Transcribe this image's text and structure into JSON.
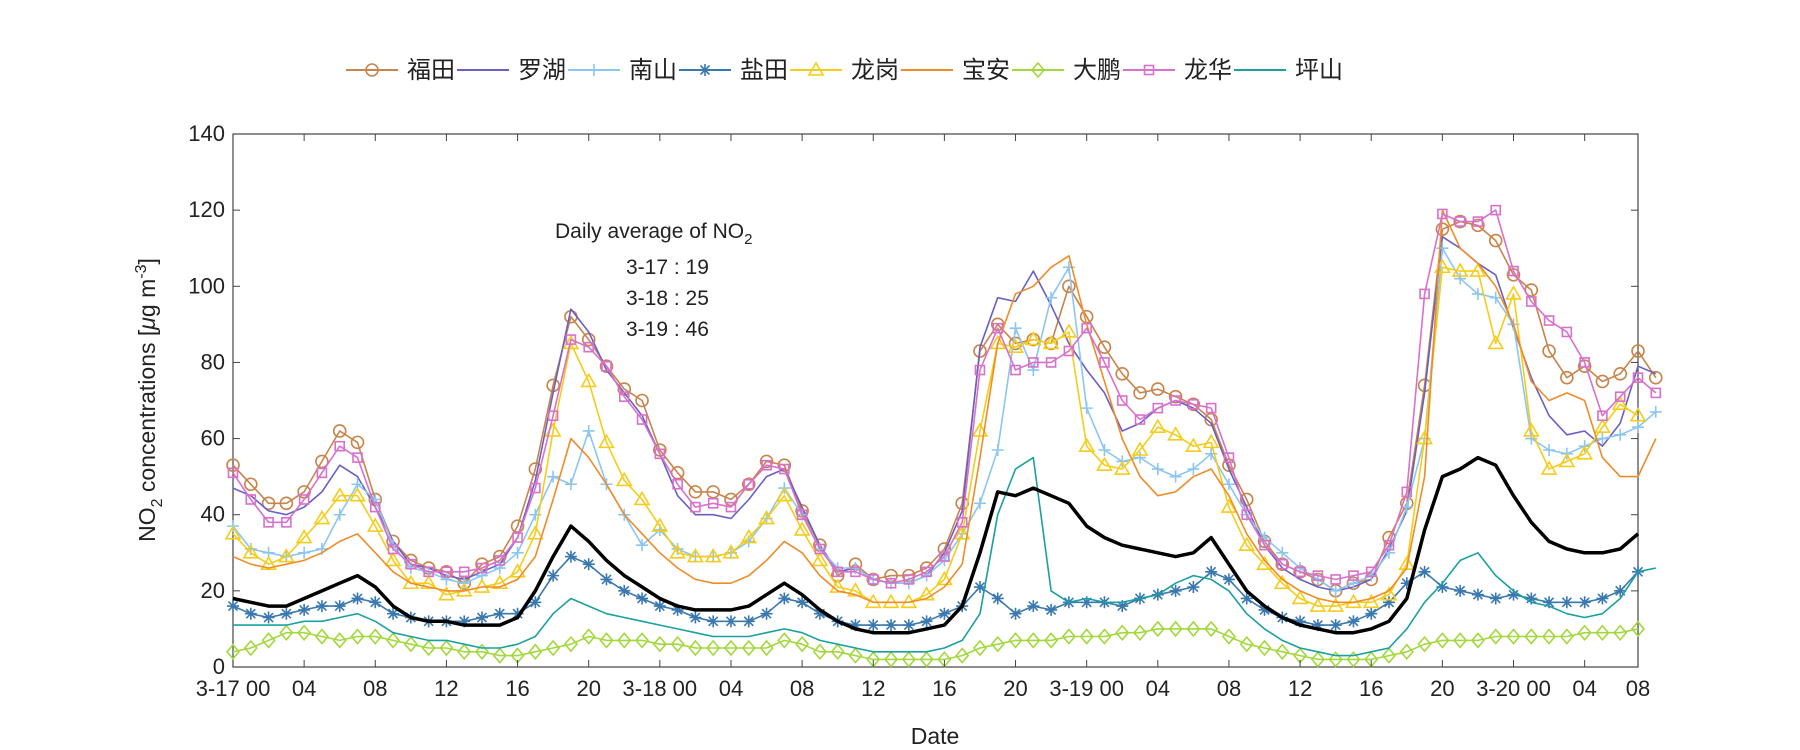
{
  "chart_data": {
    "type": "line",
    "xlabel": "Date",
    "ylabel": "NO",
    "ylabel_sub": "2",
    "ylabel_rest": " concentrations [",
    "ylabel_mu": "μ",
    "ylabel_unit": "g m",
    "ylabel_sup": "-3",
    "ylabel_end": "]",
    "ylim": [
      0,
      140
    ],
    "yticks": [
      0,
      20,
      40,
      60,
      80,
      100,
      120,
      140
    ],
    "xlim": [
      0,
      79
    ],
    "xticks": [
      {
        "x": 0,
        "label": "3-17 00"
      },
      {
        "x": 4,
        "label": "04"
      },
      {
        "x": 8,
        "label": "08"
      },
      {
        "x": 12,
        "label": "12"
      },
      {
        "x": 16,
        "label": "16"
      },
      {
        "x": 20,
        "label": "20"
      },
      {
        "x": 24,
        "label": "3-18 00"
      },
      {
        "x": 28,
        "label": "04"
      },
      {
        "x": 32,
        "label": "08"
      },
      {
        "x": 36,
        "label": "12"
      },
      {
        "x": 40,
        "label": "16"
      },
      {
        "x": 44,
        "label": "20"
      },
      {
        "x": 48,
        "label": "3-19 00"
      },
      {
        "x": 52,
        "label": "04"
      },
      {
        "x": 56,
        "label": "08"
      },
      {
        "x": 60,
        "label": "12"
      },
      {
        "x": 64,
        "label": "16"
      },
      {
        "x": 68,
        "label": "20"
      },
      {
        "x": 72,
        "label": "3-20 00"
      },
      {
        "x": 76,
        "label": "04"
      },
      {
        "x": 79,
        "label": "08"
      }
    ],
    "grid": false,
    "legend_position": "top",
    "annotation": {
      "title_main": "Daily average of NO",
      "title_sub": "2",
      "lines": [
        "3-17 : 19",
        "3-18 : 25",
        "3-19 : 46"
      ]
    },
    "series": [
      {
        "name": "福田",
        "color": "#c8844a",
        "marker": "circle",
        "values": [
          53,
          48,
          43,
          43,
          46,
          54,
          62,
          59,
          44,
          33,
          28,
          26,
          25,
          22,
          27,
          29,
          37,
          52,
          74,
          92,
          86,
          79,
          73,
          70,
          57,
          51,
          46,
          46,
          44,
          48,
          54,
          53,
          41,
          32,
          24,
          27,
          23,
          24,
          24,
          26,
          31,
          43,
          83,
          90,
          85,
          86,
          85,
          100,
          92,
          84,
          77,
          72,
          73,
          71,
          69,
          65,
          53,
          44,
          33,
          27,
          25,
          23,
          20,
          22,
          23,
          34,
          43,
          74,
          115,
          117,
          116,
          112,
          103,
          99,
          83,
          76,
          79,
          75,
          77,
          83,
          76
        ]
      },
      {
        "name": "罗湖",
        "color": "#6a5fc4",
        "marker": "none",
        "values": [
          47,
          45,
          41,
          40,
          42,
          46,
          53,
          50,
          42,
          33,
          27,
          26,
          24,
          23,
          25,
          27,
          34,
          49,
          72,
          94,
          88,
          78,
          72,
          66,
          56,
          45,
          40,
          40,
          39,
          44,
          50,
          52,
          42,
          32,
          25,
          26,
          23,
          22,
          22,
          24,
          30,
          41,
          84,
          97,
          96,
          104,
          95,
          85,
          78,
          72,
          62,
          64,
          68,
          70,
          68,
          64,
          52,
          42,
          32,
          26,
          23,
          21,
          20,
          21,
          23,
          31,
          41,
          72,
          113,
          110,
          106,
          103,
          89,
          76,
          66,
          61,
          62,
          58,
          64,
          79,
          77
        ]
      },
      {
        "name": "南山",
        "color": "#8cc6f0",
        "marker": "plus",
        "values": [
          37,
          31,
          30,
          29,
          30,
          31,
          40,
          48,
          44,
          32,
          26,
          25,
          23,
          22,
          24,
          26,
          30,
          40,
          50,
          48,
          62,
          48,
          40,
          32,
          36,
          31,
          29,
          29,
          30,
          33,
          39,
          47,
          40,
          31,
          26,
          26,
          23,
          22,
          22,
          24,
          28,
          35,
          43,
          57,
          89,
          78,
          97,
          105,
          68,
          57,
          54,
          55,
          52,
          50,
          52,
          56,
          48,
          40,
          34,
          30,
          26,
          23,
          20,
          22,
          24,
          30,
          42,
          60,
          110,
          102,
          98,
          97,
          90,
          60,
          57,
          56,
          58,
          60,
          61,
          63,
          67
        ]
      },
      {
        "name": "盐田",
        "color": "#3a78b0",
        "marker": "asterisk",
        "values": [
          16,
          14,
          13,
          14,
          15,
          16,
          16,
          18,
          17,
          14,
          13,
          12,
          12,
          12,
          13,
          14,
          14,
          17,
          24,
          29,
          27,
          23,
          20,
          18,
          16,
          15,
          13,
          12,
          12,
          12,
          14,
          18,
          17,
          14,
          12,
          11,
          11,
          11,
          11,
          12,
          14,
          16,
          21,
          18,
          14,
          16,
          15,
          17,
          17,
          17,
          16,
          18,
          19,
          20,
          21,
          25,
          23,
          18,
          15,
          13,
          12,
          11,
          11,
          12,
          14,
          17,
          22,
          25,
          21,
          20,
          19,
          18,
          19,
          18,
          17,
          17,
          17,
          18,
          20,
          25
        ]
      },
      {
        "name": "龙岗",
        "color": "#f5cc1a",
        "marker": "triangle",
        "values": [
          35,
          30,
          27,
          29,
          34,
          39,
          45,
          45,
          37,
          28,
          22,
          22,
          19,
          20,
          21,
          22,
          25,
          35,
          62,
          85,
          75,
          59,
          49,
          44,
          37,
          30,
          29,
          29,
          30,
          34,
          39,
          45,
          36,
          28,
          21,
          20,
          17,
          17,
          17,
          19,
          23,
          35,
          62,
          85,
          84,
          86,
          85,
          88,
          58,
          53,
          52,
          57,
          63,
          61,
          58,
          59,
          42,
          32,
          27,
          22,
          18,
          16,
          16,
          17,
          17,
          19,
          27,
          60,
          105,
          104,
          104,
          85,
          98,
          62,
          52,
          54,
          56,
          63,
          69,
          66
        ]
      },
      {
        "name": "宝安",
        "color": "#f08c28",
        "marker": "none",
        "values": [
          29,
          27,
          26,
          27,
          28,
          30,
          33,
          35,
          30,
          25,
          22,
          21,
          20,
          20,
          21,
          21,
          23,
          29,
          44,
          60,
          55,
          48,
          40,
          35,
          30,
          26,
          23,
          22,
          22,
          24,
          28,
          33,
          30,
          24,
          20,
          19,
          17,
          17,
          17,
          18,
          21,
          27,
          55,
          85,
          98,
          100,
          105,
          108,
          90,
          75,
          60,
          50,
          45,
          46,
          50,
          52,
          45,
          35,
          28,
          23,
          20,
          18,
          17,
          17,
          18,
          20,
          26,
          50,
          120,
          110,
          106,
          100,
          90,
          75,
          70,
          72,
          70,
          55,
          50,
          50,
          60
        ]
      },
      {
        "name": "大鹏",
        "color": "#a3d83c",
        "marker": "diamond",
        "values": [
          4,
          5,
          7,
          9,
          9,
          8,
          7,
          8,
          8,
          7,
          6,
          5,
          5,
          4,
          4,
          3,
          3,
          4,
          5,
          6,
          8,
          7,
          7,
          7,
          6,
          6,
          5,
          5,
          5,
          5,
          5,
          7,
          6,
          4,
          4,
          3,
          2,
          2,
          2,
          2,
          2,
          3,
          5,
          6,
          7,
          7,
          7,
          8,
          8,
          8,
          9,
          9,
          10,
          10,
          10,
          10,
          8,
          6,
          5,
          4,
          3,
          2,
          2,
          2,
          2,
          3,
          4,
          6,
          7,
          7,
          7,
          8,
          8,
          8,
          8,
          8,
          9,
          9,
          9,
          10
        ]
      },
      {
        "name": "龙华",
        "color": "#d870cc",
        "marker": "square",
        "values": [
          51,
          44,
          38,
          38,
          44,
          51,
          58,
          55,
          42,
          31,
          27,
          25,
          25,
          25,
          26,
          28,
          34,
          47,
          66,
          86,
          84,
          79,
          71,
          65,
          56,
          48,
          42,
          43,
          42,
          48,
          53,
          52,
          40,
          31,
          25,
          25,
          23,
          22,
          23,
          25,
          29,
          38,
          78,
          89,
          78,
          80,
          80,
          83,
          89,
          80,
          70,
          65,
          68,
          70,
          69,
          68,
          55,
          40,
          32,
          27,
          25,
          24,
          23,
          24,
          25,
          32,
          46,
          98,
          119,
          117,
          117,
          120,
          104,
          96,
          91,
          88,
          80,
          66,
          71,
          76,
          72
        ]
      },
      {
        "name": "坪山",
        "color": "#1aa0a0",
        "marker": "none",
        "values": [
          11,
          11,
          11,
          11,
          12,
          12,
          13,
          14,
          12,
          9,
          8,
          7,
          7,
          6,
          5,
          5,
          6,
          8,
          14,
          18,
          16,
          14,
          13,
          12,
          11,
          10,
          9,
          8,
          8,
          8,
          9,
          10,
          9,
          7,
          6,
          5,
          4,
          4,
          4,
          4,
          5,
          7,
          14,
          40,
          52,
          55,
          20,
          17,
          18,
          17,
          17,
          18,
          19,
          22,
          24,
          23,
          20,
          14,
          10,
          7,
          5,
          4,
          3,
          3,
          4,
          5,
          10,
          17,
          22,
          28,
          30,
          24,
          20,
          17,
          16,
          14,
          13,
          14,
          18,
          25,
          26
        ]
      },
      {
        "name": "",
        "color": "#000000",
        "marker": "none",
        "width": 3.5,
        "values": [
          18,
          17,
          16,
          16,
          18,
          20,
          22,
          24,
          21,
          16,
          13,
          12,
          12,
          11,
          11,
          11,
          13,
          20,
          29,
          37,
          33,
          28,
          24,
          21,
          18,
          16,
          15,
          15,
          15,
          16,
          19,
          22,
          19,
          15,
          12,
          10,
          9,
          9,
          9,
          10,
          11,
          16,
          30,
          46,
          45,
          47,
          45,
          43,
          37,
          34,
          32,
          31,
          30,
          29,
          30,
          34,
          27,
          20,
          16,
          13,
          11,
          10,
          9,
          9,
          10,
          12,
          18,
          36,
          50,
          52,
          55,
          53,
          45,
          38,
          33,
          31,
          30,
          30,
          31,
          35
        ]
      }
    ]
  }
}
